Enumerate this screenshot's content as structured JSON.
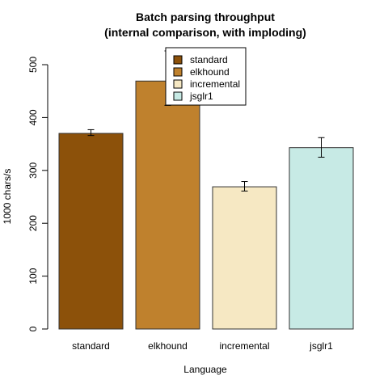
{
  "chart_data": {
    "type": "bar",
    "title_line1": "Batch parsing throughput",
    "title_line2": "(internal comparison, with imploding)",
    "xlabel": "Language",
    "ylabel": "1000 chars/s",
    "categories": [
      "standard",
      "elkhound",
      "incremental",
      "jsglr1"
    ],
    "values": [
      370,
      469,
      269,
      343
    ],
    "errors": [
      [
        366,
        377
      ],
      [
        423,
        526
      ],
      [
        261,
        279
      ],
      [
        325,
        362
      ]
    ],
    "colors": [
      "#8c510a",
      "#bf812d",
      "#f6e8c3",
      "#c7eae5"
    ],
    "ylim": [
      0,
      500
    ],
    "yticks": [
      "0",
      "100",
      "200",
      "300",
      "400",
      "500"
    ],
    "legend": {
      "placement": "top-center",
      "entries": [
        "standard",
        "elkhound",
        "incremental",
        "jsglr1"
      ]
    }
  }
}
